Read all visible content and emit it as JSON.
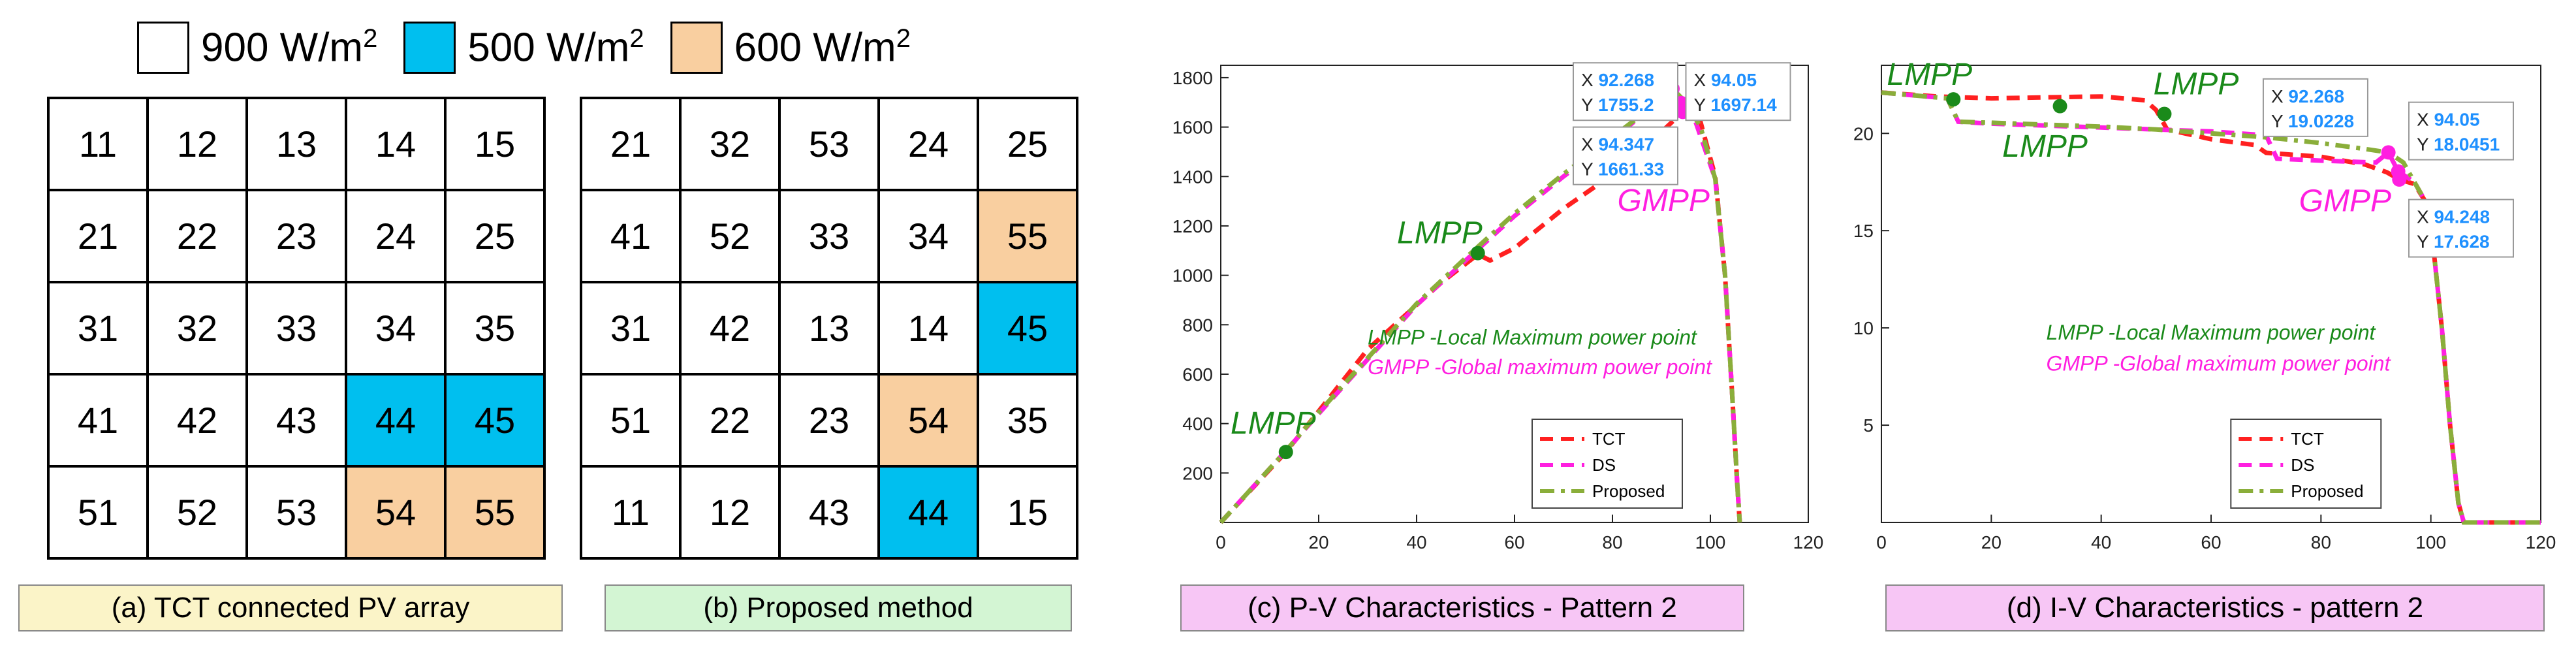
{
  "legend": [
    {
      "label": "900 W/m",
      "sup": "2",
      "color": "#ffffff"
    },
    {
      "label": "500 W/m",
      "sup": "2",
      "color": "#00bfef"
    },
    {
      "label": "600 W/m",
      "sup": "2",
      "color": "#f9cfa0"
    }
  ],
  "grid_a": {
    "caption": "(a) TCT connected PV array",
    "caption_color": "#fbf4c8",
    "rows": [
      [
        {
          "v": "11",
          "s": "w"
        },
        {
          "v": "12",
          "s": "w"
        },
        {
          "v": "13",
          "s": "w"
        },
        {
          "v": "14",
          "s": "w"
        },
        {
          "v": "15",
          "s": "w"
        }
      ],
      [
        {
          "v": "21",
          "s": "w"
        },
        {
          "v": "22",
          "s": "w"
        },
        {
          "v": "23",
          "s": "w"
        },
        {
          "v": "24",
          "s": "w"
        },
        {
          "v": "25",
          "s": "w"
        }
      ],
      [
        {
          "v": "31",
          "s": "w"
        },
        {
          "v": "32",
          "s": "w"
        },
        {
          "v": "33",
          "s": "w"
        },
        {
          "v": "34",
          "s": "w"
        },
        {
          "v": "35",
          "s": "w"
        }
      ],
      [
        {
          "v": "41",
          "s": "w"
        },
        {
          "v": "42",
          "s": "w"
        },
        {
          "v": "43",
          "s": "w"
        },
        {
          "v": "44",
          "s": "b"
        },
        {
          "v": "45",
          "s": "b"
        }
      ],
      [
        {
          "v": "51",
          "s": "w"
        },
        {
          "v": "52",
          "s": "w"
        },
        {
          "v": "53",
          "s": "w"
        },
        {
          "v": "54",
          "s": "o"
        },
        {
          "v": "55",
          "s": "o"
        }
      ]
    ]
  },
  "grid_b": {
    "caption": "(b) Proposed method",
    "caption_color": "#d3f5d3",
    "rows": [
      [
        {
          "v": "21",
          "s": "w"
        },
        {
          "v": "32",
          "s": "w"
        },
        {
          "v": "53",
          "s": "w"
        },
        {
          "v": "24",
          "s": "w"
        },
        {
          "v": "25",
          "s": "w"
        }
      ],
      [
        {
          "v": "41",
          "s": "w"
        },
        {
          "v": "52",
          "s": "w"
        },
        {
          "v": "33",
          "s": "w"
        },
        {
          "v": "34",
          "s": "w"
        },
        {
          "v": "55",
          "s": "o"
        }
      ],
      [
        {
          "v": "31",
          "s": "w"
        },
        {
          "v": "42",
          "s": "w"
        },
        {
          "v": "13",
          "s": "w"
        },
        {
          "v": "14",
          "s": "w"
        },
        {
          "v": "45",
          "s": "b"
        }
      ],
      [
        {
          "v": "51",
          "s": "w"
        },
        {
          "v": "22",
          "s": "w"
        },
        {
          "v": "23",
          "s": "w"
        },
        {
          "v": "54",
          "s": "o"
        },
        {
          "v": "35",
          "s": "w"
        }
      ],
      [
        {
          "v": "11",
          "s": "w"
        },
        {
          "v": "12",
          "s": "w"
        },
        {
          "v": "43",
          "s": "w"
        },
        {
          "v": "44",
          "s": "b"
        },
        {
          "v": "15",
          "s": "w"
        }
      ]
    ]
  },
  "shade_colors": {
    "w": "#ffffff",
    "b": "#00bfef",
    "o": "#f9cfa0"
  },
  "chart_data": [
    {
      "id": "pv",
      "type": "line",
      "title": "",
      "caption": "(c) P-V Characteristics - Pattern 2",
      "caption_color": "#f7c6f5",
      "xlim": [
        0,
        120
      ],
      "ylim": [
        0,
        1850
      ],
      "xticks": [
        0,
        20,
        40,
        60,
        80,
        100,
        120
      ],
      "yticks": [
        200,
        400,
        600,
        800,
        1000,
        1200,
        1400,
        1600,
        1800
      ],
      "series": [
        {
          "name": "TCT",
          "color": "#ff2020",
          "dash": "dash",
          "points": [
            [
              0,
              0
            ],
            [
              13.3,
              285
            ],
            [
              20,
              450
            ],
            [
              30,
              700
            ],
            [
              40,
              880
            ],
            [
              45,
              970
            ],
            [
              52.5,
              1085
            ],
            [
              55,
              1060
            ],
            [
              60,
              1110
            ],
            [
              70,
              1270
            ],
            [
              78,
              1380
            ],
            [
              85,
              1450
            ],
            [
              90,
              1580
            ],
            [
              94.35,
              1661.33
            ],
            [
              98,
              1620
            ],
            [
              101,
              1400
            ],
            [
              103,
              1000
            ],
            [
              104.5,
              500
            ],
            [
              105.5,
              150
            ],
            [
              106,
              0
            ]
          ]
        },
        {
          "name": "DS",
          "color": "#ff1fe0",
          "dash": "dash",
          "points": [
            [
              0,
              0
            ],
            [
              13.3,
              290
            ],
            [
              20,
              440
            ],
            [
              30,
              660
            ],
            [
              40,
              880
            ],
            [
              50,
              1060
            ],
            [
              60,
              1240
            ],
            [
              70,
              1400
            ],
            [
              80,
              1550
            ],
            [
              88,
              1680
            ],
            [
              92.27,
              1755.2
            ],
            [
              94.05,
              1697.14
            ],
            [
              97,
              1620
            ],
            [
              101,
              1390
            ],
            [
              103,
              1000
            ],
            [
              104.5,
              500
            ],
            [
              105.5,
              150
            ],
            [
              106,
              0
            ]
          ]
        },
        {
          "name": "Proposed",
          "color": "#8aae3a",
          "dash": "dashdot",
          "points": [
            [
              0,
              0
            ],
            [
              13.3,
              290
            ],
            [
              20,
              445
            ],
            [
              30,
              665
            ],
            [
              40,
              885
            ],
            [
              50,
              1070
            ],
            [
              60,
              1250
            ],
            [
              70,
              1410
            ],
            [
              80,
              1560
            ],
            [
              88,
              1680
            ],
            [
              92.27,
              1755.2
            ],
            [
              95,
              1700
            ],
            [
              98,
              1600
            ],
            [
              101,
              1390
            ],
            [
              103,
              1000
            ],
            [
              104.5,
              500
            ],
            [
              105.5,
              150
            ],
            [
              106,
              0
            ]
          ]
        }
      ],
      "markers": [
        {
          "x": 13.3,
          "y": 285,
          "color": "#1a8a1a"
        },
        {
          "x": 52.5,
          "y": 1090,
          "color": "#1a8a1a"
        },
        {
          "x": 92.27,
          "y": 1755.2,
          "color": "#ff1fe0"
        },
        {
          "x": 94.05,
          "y": 1697.14,
          "color": "#ff1fe0"
        },
        {
          "x": 94.35,
          "y": 1661.33,
          "color": "#ff1fe0"
        }
      ],
      "annotations": [
        {
          "text": "LMPP",
          "x": 2,
          "y": 360,
          "color": "#1a8a1a"
        },
        {
          "text": "LMPP",
          "x": 36,
          "y": 1130,
          "color": "#1a8a1a"
        },
        {
          "text": "GMPP",
          "x": 81,
          "y": 1260,
          "color": "#ff1fe0"
        },
        {
          "text": "LMPP -Local Maximum power point",
          "x": 30,
          "y": 720,
          "color": "#1a8a1a",
          "small": true
        },
        {
          "text": "GMPP -Global maximum power point",
          "x": 30,
          "y": 600,
          "color": "#ff1fe0",
          "small": true
        }
      ],
      "datatips": [
        {
          "X": "92.268",
          "Y": "1755.2",
          "ax": 72,
          "ay": 1860
        },
        {
          "X": "94.05",
          "Y": "1697.14",
          "ax": 95,
          "ay": 1860
        },
        {
          "X": "94.347",
          "Y": "1661.33",
          "ax": 72,
          "ay": 1600
        }
      ],
      "legend": [
        {
          "label": "TCT",
          "color": "#ff2020",
          "dash": "dash"
        },
        {
          "label": "DS",
          "color": "#ff1fe0",
          "dash": "dash"
        },
        {
          "label": "Proposed",
          "color": "#8aae3a",
          "dash": "dashdot"
        }
      ]
    },
    {
      "id": "iv",
      "type": "line",
      "title": "",
      "caption": "(d) I-V Characteristics - pattern 2",
      "caption_color": "#f7c6f5",
      "xlim": [
        0,
        120
      ],
      "ylim": [
        0,
        23.5
      ],
      "xticks": [
        0,
        20,
        40,
        60,
        80,
        100,
        120
      ],
      "yticks": [
        5,
        10,
        15,
        20
      ],
      "series": [
        {
          "name": "TCT",
          "color": "#ff2020",
          "dash": "dash",
          "points": [
            [
              0,
              22.1
            ],
            [
              10,
              21.9
            ],
            [
              20,
              21.8
            ],
            [
              30,
              21.85
            ],
            [
              40,
              21.9
            ],
            [
              48,
              21.7
            ],
            [
              50,
              21.2
            ],
            [
              52,
              20.2
            ],
            [
              60,
              19.7
            ],
            [
              68,
              19.4
            ],
            [
              70,
              19.0
            ],
            [
              80,
              18.8
            ],
            [
              88,
              18.4
            ],
            [
              92,
              18.0
            ],
            [
              94.25,
              17.628
            ],
            [
              97,
              17.4
            ],
            [
              99,
              16.5
            ],
            [
              100.5,
              14
            ],
            [
              102,
              10
            ],
            [
              103.5,
              5
            ],
            [
              105,
              1
            ],
            [
              106,
              0
            ],
            [
              120,
              0
            ]
          ]
        },
        {
          "name": "DS",
          "color": "#ff1fe0",
          "dash": "dash",
          "points": [
            [
              0,
              22.1
            ],
            [
              12,
              21.8
            ],
            [
              14,
              20.6
            ],
            [
              20,
              20.5
            ],
            [
              30,
              20.4
            ],
            [
              40,
              20.3
            ],
            [
              50,
              20.2
            ],
            [
              60,
              20.1
            ],
            [
              70,
              19.9
            ],
            [
              72,
              18.7
            ],
            [
              80,
              18.6
            ],
            [
              90,
              18.5
            ],
            [
              92.27,
              19.0228
            ],
            [
              94.05,
              18.0451
            ],
            [
              97,
              17.5
            ],
            [
              99,
              16.5
            ],
            [
              100.5,
              14
            ],
            [
              102,
              10
            ],
            [
              103.5,
              5
            ],
            [
              105,
              1
            ],
            [
              106,
              0
            ],
            [
              120,
              0
            ]
          ]
        },
        {
          "name": "Proposed",
          "color": "#8aae3a",
          "dash": "dashdot",
          "points": [
            [
              0,
              22.1
            ],
            [
              12,
              21.8
            ],
            [
              14,
              20.6
            ],
            [
              20,
              20.55
            ],
            [
              30,
              20.45
            ],
            [
              40,
              20.35
            ],
            [
              50,
              20.2
            ],
            [
              60,
              20.0
            ],
            [
              70,
              19.8
            ],
            [
              80,
              19.5
            ],
            [
              88,
              19.2
            ],
            [
              92.27,
              19.0228
            ],
            [
              95,
              18.5
            ],
            [
              97,
              17.5
            ],
            [
              99,
              16.5
            ],
            [
              100.5,
              14
            ],
            [
              102,
              10
            ],
            [
              103.5,
              5
            ],
            [
              105,
              1
            ],
            [
              106,
              0
            ],
            [
              120,
              0
            ]
          ]
        }
      ],
      "markers": [
        {
          "x": 13.1,
          "y": 21.75,
          "color": "#1a8a1a"
        },
        {
          "x": 32.5,
          "y": 21.4,
          "color": "#1a8a1a"
        },
        {
          "x": 51.5,
          "y": 21.0,
          "color": "#1a8a1a"
        },
        {
          "x": 92.27,
          "y": 19.0228,
          "color": "#ff1fe0"
        },
        {
          "x": 94.05,
          "y": 18.0451,
          "color": "#ff1fe0"
        },
        {
          "x": 94.25,
          "y": 17.628,
          "color": "#ff1fe0"
        }
      ],
      "annotations": [
        {
          "text": "LMPP",
          "x": 1,
          "y": 22.5,
          "color": "#1a8a1a"
        },
        {
          "text": "LMPP",
          "x": 49.5,
          "y": 22.0,
          "color": "#1a8a1a"
        },
        {
          "text": "LMPP",
          "x": 22,
          "y": 18.8,
          "color": "#1a8a1a"
        },
        {
          "text": "GMPP",
          "x": 76,
          "y": 16.0,
          "color": "#ff1fe0"
        },
        {
          "text": "LMPP -Local Maximum power point",
          "x": 30,
          "y": 9.4,
          "color": "#1a8a1a",
          "small": true
        },
        {
          "text": "GMPP -Global maximum power point",
          "x": 30,
          "y": 7.8,
          "color": "#ff1fe0",
          "small": true
        }
      ],
      "datatips": [
        {
          "X": "92.268",
          "Y": "19.0228",
          "ax": 69.5,
          "ay": 22.8
        },
        {
          "X": "94.05",
          "Y": "18.0451",
          "ax": 96,
          "ay": 21.6
        },
        {
          "X": "94.248",
          "Y": "17.628",
          "ax": 96,
          "ay": 16.6
        }
      ],
      "legend": [
        {
          "label": "TCT",
          "color": "#ff2020",
          "dash": "dash"
        },
        {
          "label": "DS",
          "color": "#ff1fe0",
          "dash": "dash"
        },
        {
          "label": "Proposed",
          "color": "#8aae3a",
          "dash": "dashdot"
        }
      ]
    }
  ]
}
